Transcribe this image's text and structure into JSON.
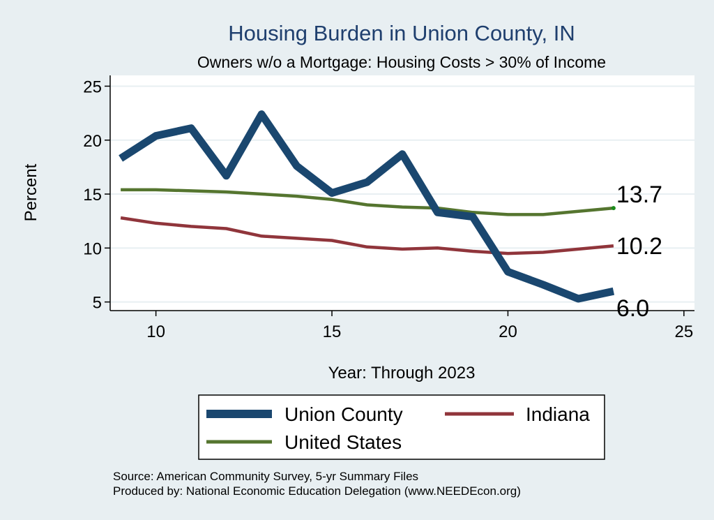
{
  "chart_data": {
    "type": "line",
    "title": "Housing Burden in Union County, IN",
    "subtitle": "Owners w/o a Mortgage: Housing Costs > 30% of Income",
    "xlabel": "Year: Through 2023",
    "ylabel": "Percent",
    "xlim": [
      8.7,
      25.3
    ],
    "ylim": [
      4.2,
      26.0
    ],
    "xticks": [
      10,
      15,
      20,
      25
    ],
    "yticks": [
      5,
      10,
      15,
      20,
      25
    ],
    "x": [
      9,
      10,
      11,
      12,
      13,
      14,
      15,
      16,
      17,
      18,
      19,
      20,
      21,
      22,
      23
    ],
    "series": [
      {
        "name": "Union County",
        "color": "#1a476f",
        "values": [
          18.3,
          20.4,
          21.1,
          16.7,
          22.4,
          17.6,
          15.1,
          16.1,
          18.7,
          13.3,
          12.9,
          7.8,
          6.6,
          5.3,
          6.0
        ],
        "end_label": "6.0"
      },
      {
        "name": "Indiana",
        "color": "#90353b",
        "values": [
          12.8,
          12.3,
          12.0,
          11.8,
          11.1,
          10.9,
          10.7,
          10.1,
          9.9,
          10.0,
          9.7,
          9.5,
          9.6,
          9.9,
          10.2
        ],
        "end_label": "10.2"
      },
      {
        "name": "United States",
        "color": "#55752f",
        "values": [
          15.4,
          15.4,
          15.3,
          15.2,
          15.0,
          14.8,
          14.5,
          14.0,
          13.8,
          13.7,
          13.3,
          13.1,
          13.1,
          13.4,
          13.7
        ],
        "end_label": "13.7"
      }
    ],
    "legend": [
      "Union County",
      "Indiana",
      "United States"
    ],
    "legend_position": "bottom",
    "grid": true
  },
  "notes": {
    "source": "Source: American Community Survey, 5-yr Summary Files",
    "producer": "Produced by: National Economic Education Delegation (www.NEEDEcon.org)"
  },
  "colors": {
    "background": "#e8eff2",
    "plot_area": "#ffffff",
    "grid": "#e8eff2",
    "title": "#1f3f6e"
  }
}
